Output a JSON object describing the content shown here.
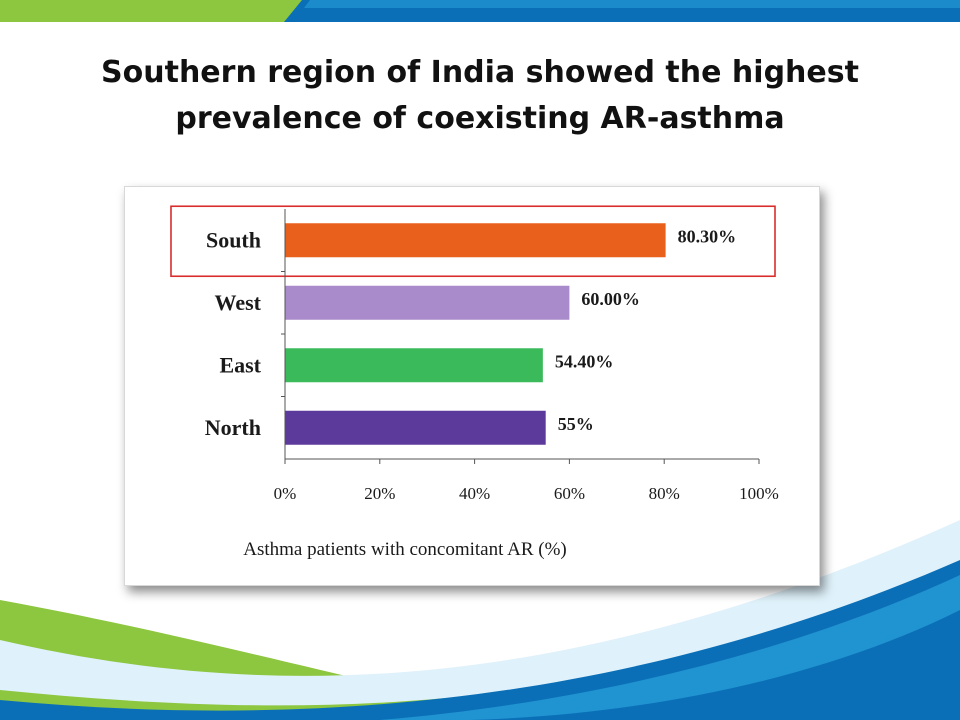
{
  "slide": {
    "title_line1": "Southern region of India showed the highest",
    "title_line2": "prevalence of coexisting AR-asthma"
  },
  "theme": {
    "green_band": "#8dc63f",
    "blue_band": "#0b6fb8",
    "light_blue": "#29a3dc",
    "highlight_box": "#d92d2d"
  },
  "chart_data": {
    "type": "bar",
    "orientation": "horizontal",
    "categories": [
      "South",
      "West",
      "East",
      "North"
    ],
    "values": [
      80.3,
      60.0,
      54.4,
      55
    ],
    "value_labels": [
      "80.30%",
      "60.00%",
      "54.40%",
      "55%"
    ],
    "colors": [
      "#e8601c",
      "#a98bcc",
      "#3bba5b",
      "#5b3a9c"
    ],
    "xlabel": "Asthma patients with concomitant AR (%)",
    "xlim": [
      0,
      100
    ],
    "x_ticks": [
      0,
      20,
      40,
      60,
      80,
      100
    ],
    "x_tick_labels": [
      "0%",
      "20%",
      "40%",
      "60%",
      "80%",
      "100%"
    ],
    "highlight": "South",
    "grid": false,
    "legend": "none"
  }
}
